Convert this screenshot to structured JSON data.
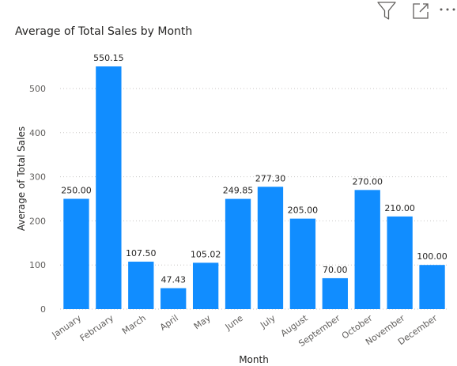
{
  "toolbar": {
    "filter_icon": "filter-icon",
    "focus_icon": "focus-mode-icon",
    "more_icon": "more-options-icon"
  },
  "colors": {
    "bar": "#118DFF",
    "grid": "#c8c6c4",
    "text": "#252423"
  },
  "chart_data": {
    "type": "bar",
    "title": "Average of Total Sales by Month",
    "xlabel": "Month",
    "ylabel": "Average of Total Sales",
    "categories": [
      "January",
      "February",
      "March",
      "April",
      "May",
      "June",
      "July",
      "August",
      "September",
      "October",
      "November",
      "December"
    ],
    "values": [
      250.0,
      550.15,
      107.5,
      47.43,
      105.02,
      249.85,
      277.3,
      205.0,
      70.0,
      270.0,
      210.0,
      100.0
    ],
    "value_labels": [
      "250.00",
      "550.15",
      "107.50",
      "47.43",
      "105.02",
      "249.85",
      "277.30",
      "205.00",
      "70.00",
      "270.00",
      "210.00",
      "100.00"
    ],
    "yticks": [
      0,
      100,
      200,
      300,
      400,
      500
    ],
    "ylim": [
      0,
      550.15
    ],
    "grid": true,
    "legend": "none"
  }
}
